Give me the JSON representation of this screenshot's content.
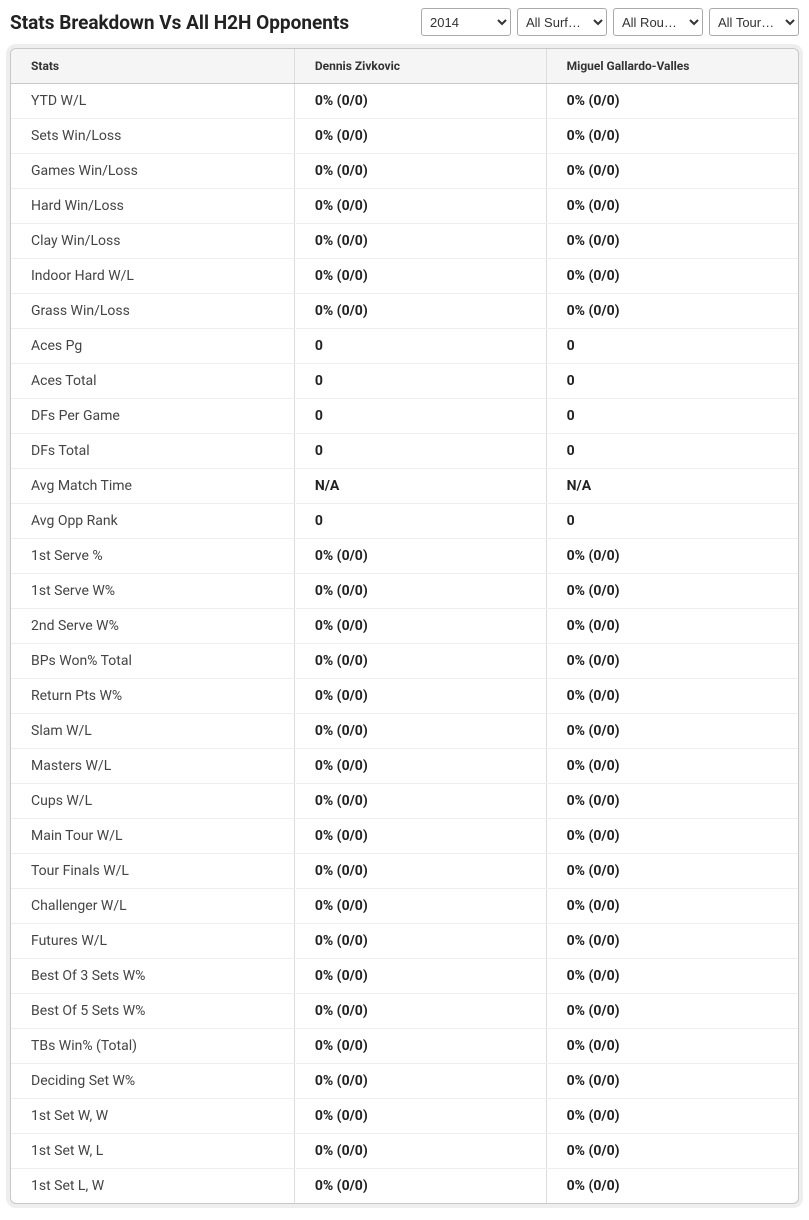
{
  "header": {
    "title": "Stats Breakdown Vs All H2H Opponents",
    "filters": {
      "year": {
        "selected": "2014",
        "options": [
          "2014"
        ]
      },
      "surface": {
        "selected": "All Surf…",
        "options": [
          "All Surf…"
        ]
      },
      "round": {
        "selected": "All Rou…",
        "options": [
          "All Rou…"
        ]
      },
      "tournament": {
        "selected": "All Tour…",
        "options": [
          "All Tour…"
        ]
      }
    }
  },
  "table": {
    "columns": [
      "Stats",
      "Dennis Zivkovic",
      "Miguel Gallardo-Valles"
    ],
    "rows": [
      {
        "stat": "YTD W/L",
        "p1": "0% (0/0)",
        "p2": "0% (0/0)"
      },
      {
        "stat": "Sets Win/Loss",
        "p1": "0% (0/0)",
        "p2": "0% (0/0)"
      },
      {
        "stat": "Games Win/Loss",
        "p1": "0% (0/0)",
        "p2": "0% (0/0)"
      },
      {
        "stat": "Hard Win/Loss",
        "p1": "0% (0/0)",
        "p2": "0% (0/0)"
      },
      {
        "stat": "Clay Win/Loss",
        "p1": "0% (0/0)",
        "p2": "0% (0/0)"
      },
      {
        "stat": "Indoor Hard W/L",
        "p1": "0% (0/0)",
        "p2": "0% (0/0)"
      },
      {
        "stat": "Grass Win/Loss",
        "p1": "0% (0/0)",
        "p2": "0% (0/0)"
      },
      {
        "stat": "Aces Pg",
        "p1": "0",
        "p2": "0"
      },
      {
        "stat": "Aces Total",
        "p1": "0",
        "p2": "0"
      },
      {
        "stat": "DFs Per Game",
        "p1": "0",
        "p2": "0"
      },
      {
        "stat": "DFs Total",
        "p1": "0",
        "p2": "0"
      },
      {
        "stat": "Avg Match Time",
        "p1": "N/A",
        "p2": "N/A"
      },
      {
        "stat": "Avg Opp Rank",
        "p1": "0",
        "p2": "0"
      },
      {
        "stat": "1st Serve %",
        "p1": "0% (0/0)",
        "p2": "0% (0/0)"
      },
      {
        "stat": "1st Serve W%",
        "p1": "0% (0/0)",
        "p2": "0% (0/0)"
      },
      {
        "stat": "2nd Serve W%",
        "p1": "0% (0/0)",
        "p2": "0% (0/0)"
      },
      {
        "stat": "BPs Won% Total",
        "p1": "0% (0/0)",
        "p2": "0% (0/0)"
      },
      {
        "stat": "Return Pts W%",
        "p1": "0% (0/0)",
        "p2": "0% (0/0)"
      },
      {
        "stat": "Slam W/L",
        "p1": "0% (0/0)",
        "p2": "0% (0/0)"
      },
      {
        "stat": "Masters W/L",
        "p1": "0% (0/0)",
        "p2": "0% (0/0)"
      },
      {
        "stat": "Cups W/L",
        "p1": "0% (0/0)",
        "p2": "0% (0/0)"
      },
      {
        "stat": "Main Tour W/L",
        "p1": "0% (0/0)",
        "p2": "0% (0/0)"
      },
      {
        "stat": "Tour Finals W/L",
        "p1": "0% (0/0)",
        "p2": "0% (0/0)"
      },
      {
        "stat": "Challenger W/L",
        "p1": "0% (0/0)",
        "p2": "0% (0/0)"
      },
      {
        "stat": "Futures W/L",
        "p1": "0% (0/0)",
        "p2": "0% (0/0)"
      },
      {
        "stat": "Best Of 3 Sets W%",
        "p1": "0% (0/0)",
        "p2": "0% (0/0)"
      },
      {
        "stat": "Best Of 5 Sets W%",
        "p1": "0% (0/0)",
        "p2": "0% (0/0)"
      },
      {
        "stat": "TBs Win% (Total)",
        "p1": "0% (0/0)",
        "p2": "0% (0/0)"
      },
      {
        "stat": "Deciding Set W%",
        "p1": "0% (0/0)",
        "p2": "0% (0/0)"
      },
      {
        "stat": "1st Set W, W",
        "p1": "0% (0/0)",
        "p2": "0% (0/0)"
      },
      {
        "stat": "1st Set W, L",
        "p1": "0% (0/0)",
        "p2": "0% (0/0)"
      },
      {
        "stat": "1st Set L, W",
        "p1": "0% (0/0)",
        "p2": "0% (0/0)"
      }
    ]
  },
  "styling": {
    "header_bg": "#ffffff",
    "title_color": "#222222",
    "table_border": "#c8c8c8",
    "thead_bg": "#f5f5f5",
    "row_border": "#eeeeee",
    "col_border": "#dddddd",
    "value_weight": 700
  }
}
